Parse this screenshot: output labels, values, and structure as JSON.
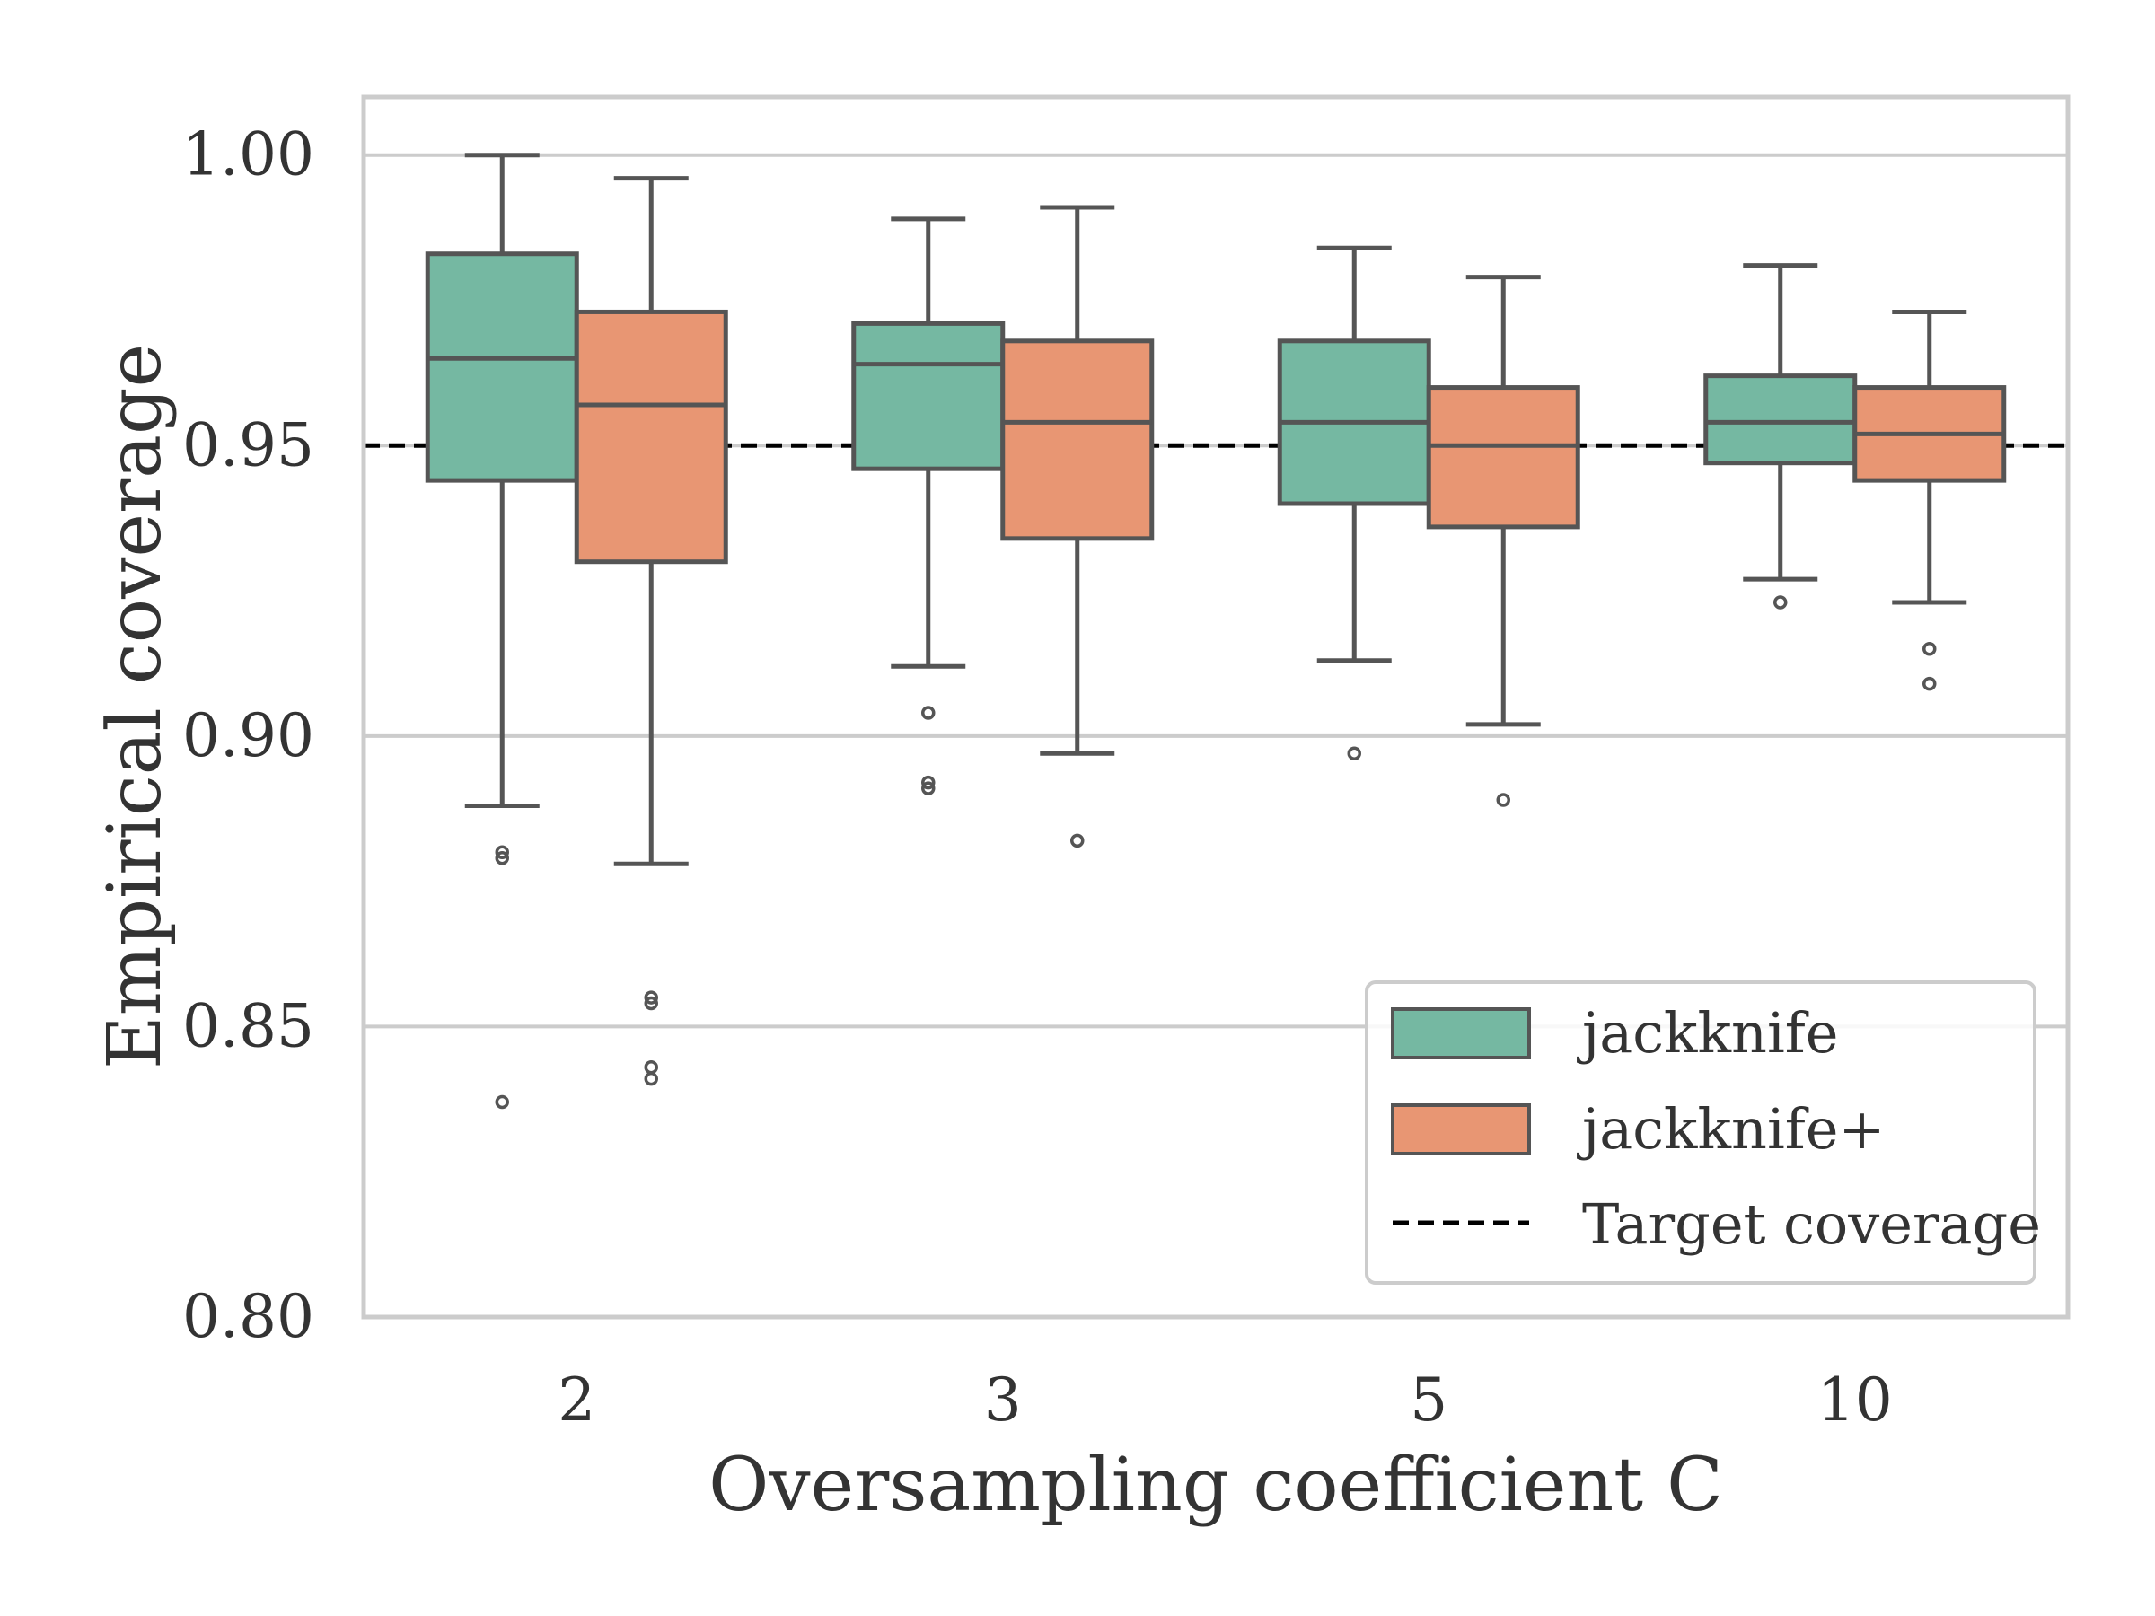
{
  "chart_data": {
    "type": "boxplot",
    "title": "",
    "xlabel": "Oversampling coefficient C",
    "ylabel": "Empirical coverage",
    "ylim": [
      0.8,
      1.01
    ],
    "yticks": [
      0.8,
      0.85,
      0.9,
      0.95,
      1.0
    ],
    "ytick_labels": [
      "0.80",
      "0.85",
      "0.90",
      "0.95",
      "1.00"
    ],
    "grid": "horizontal",
    "categories": [
      "2",
      "3",
      "5",
      "10"
    ],
    "series": [
      {
        "name": "jackknife",
        "color": "#75b8a2",
        "boxes": [
          {
            "whisker_low": 0.888,
            "q1": 0.944,
            "median": 0.965,
            "q3": 0.983,
            "whisker_high": 1.0,
            "outliers": [
              0.88,
              0.879,
              0.837
            ]
          },
          {
            "whisker_low": 0.912,
            "q1": 0.946,
            "median": 0.964,
            "q3": 0.971,
            "whisker_high": 0.989,
            "outliers": [
              0.904,
              0.892,
              0.891
            ]
          },
          {
            "whisker_low": 0.913,
            "q1": 0.94,
            "median": 0.954,
            "q3": 0.968,
            "whisker_high": 0.984,
            "outliers": [
              0.897
            ]
          },
          {
            "whisker_low": 0.927,
            "q1": 0.947,
            "median": 0.954,
            "q3": 0.962,
            "whisker_high": 0.981,
            "outliers": [
              0.923
            ]
          }
        ]
      },
      {
        "name": "jackknife+",
        "color": "#e89673",
        "boxes": [
          {
            "whisker_low": 0.878,
            "q1": 0.93,
            "median": 0.957,
            "q3": 0.973,
            "whisker_high": 0.996,
            "outliers": [
              0.855,
              0.854,
              0.843,
              0.841
            ]
          },
          {
            "whisker_low": 0.897,
            "q1": 0.934,
            "median": 0.954,
            "q3": 0.968,
            "whisker_high": 0.991,
            "outliers": [
              0.882
            ]
          },
          {
            "whisker_low": 0.902,
            "q1": 0.936,
            "median": 0.95,
            "q3": 0.96,
            "whisker_high": 0.979,
            "outliers": [
              0.889
            ]
          },
          {
            "whisker_low": 0.923,
            "q1": 0.944,
            "median": 0.952,
            "q3": 0.96,
            "whisker_high": 0.973,
            "outliers": [
              0.915,
              0.909
            ]
          }
        ]
      }
    ],
    "reference_line": {
      "name": "Target coverage",
      "value": 0.95,
      "style": "dashed",
      "color": "#000000"
    },
    "legend": {
      "position": "bottom-right",
      "entries": [
        "jackknife",
        "jackknife+",
        "Target coverage"
      ]
    },
    "colors": {
      "frame": "#cccccc",
      "grid": "#cccccc",
      "box_edge": "#555555",
      "text": "#333333"
    }
  }
}
